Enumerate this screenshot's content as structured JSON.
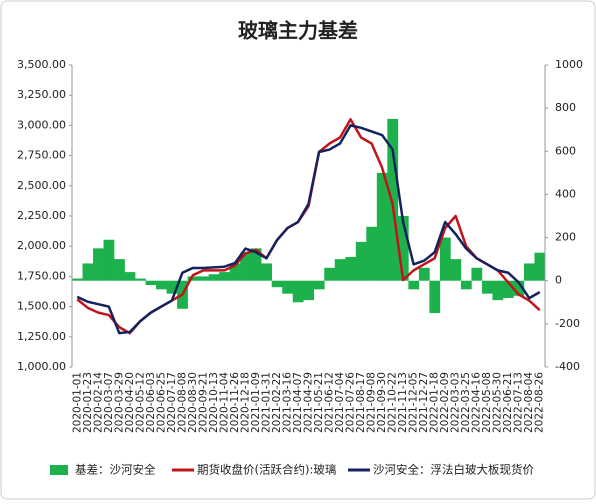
{
  "chart_data": {
    "type": "combo",
    "title": "玻璃主力基差",
    "x": [
      "2020-01-01",
      "2020-01-23",
      "2020-02-14",
      "2020-03-07",
      "2020-03-29",
      "2020-04-20",
      "2020-05-12",
      "2020-06-03",
      "2020-06-25",
      "2020-07-17",
      "2020-08-08",
      "2020-08-30",
      "2020-09-21",
      "2020-10-13",
      "2020-11-04",
      "2020-11-26",
      "2020-12-18",
      "2021-01-09",
      "2021-01-31",
      "2021-02-22",
      "2021-03-16",
      "2021-04-07",
      "2021-04-29",
      "2021-05-21",
      "2021-06-12",
      "2021-07-04",
      "2021-07-26",
      "2021-08-17",
      "2021-09-08",
      "2021-09-30",
      "2021-10-22",
      "2021-11-13",
      "2021-12-05",
      "2021-12-27",
      "2022-01-18",
      "2022-02-09",
      "2022-03-03",
      "2022-03-25",
      "2022-04-16",
      "2022-05-08",
      "2022-05-30",
      "2022-06-21",
      "2022-07-13",
      "2022-08-04",
      "2022-08-26"
    ],
    "series": [
      {
        "name": "基差：沙河安全",
        "type": "bar",
        "axis": "y2",
        "color": "#1db14b",
        "values": [
          10,
          80,
          150,
          190,
          100,
          40,
          10,
          -20,
          -40,
          -60,
          -130,
          20,
          20,
          30,
          40,
          80,
          130,
          150,
          80,
          -30,
          -60,
          -100,
          -90,
          -40,
          60,
          100,
          110,
          180,
          250,
          500,
          750,
          300,
          -40,
          60,
          -150,
          200,
          100,
          -40,
          60,
          -60,
          -90,
          -80,
          -70,
          80,
          130
        ]
      },
      {
        "name": "期货收盘价(活跃合约):玻璃",
        "type": "line",
        "color": "#c0141b",
        "values": [
          1560,
          1490,
          1450,
          1430,
          1330,
          1280,
          1380,
          1450,
          1500,
          1550,
          1600,
          1760,
          1800,
          1800,
          1800,
          1840,
          1940,
          1970,
          1900,
          2050,
          2150,
          2200,
          2330,
          2780,
          2850,
          2900,
          3050,
          2900,
          2850,
          2650,
          2350,
          1720,
          1800,
          1850,
          1900,
          2150,
          2250,
          2000,
          1900,
          1850,
          1800,
          1700,
          1600,
          1550,
          1470
        ]
      },
      {
        "name": "沙河安全：浮法白玻大板现货价",
        "type": "line",
        "color": "#14235e",
        "values": [
          1580,
          1540,
          1520,
          1500,
          1280,
          1290,
          1380,
          1450,
          1500,
          1550,
          1780,
          1820,
          1820,
          1825,
          1830,
          1860,
          1980,
          1950,
          1900,
          2050,
          2150,
          2200,
          2350,
          2780,
          2800,
          2850,
          3000,
          2980,
          2950,
          2920,
          2800,
          2200,
          1850,
          1880,
          1950,
          2200,
          2100,
          1980,
          1900,
          1850,
          1800,
          1780,
          1700,
          1570,
          1620
        ]
      }
    ],
    "ylim": [
      1000,
      3500
    ],
    "yticks": [
      {
        "value": 1000,
        "label": "1,000.00"
      },
      {
        "value": 1250,
        "label": "1,250.00"
      },
      {
        "value": 1500,
        "label": "1,500.00"
      },
      {
        "value": 1750,
        "label": "1,750.00"
      },
      {
        "value": 2000,
        "label": "2,000.00"
      },
      {
        "value": 2250,
        "label": "2,250.00"
      },
      {
        "value": 2500,
        "label": "2,500.00"
      },
      {
        "value": 2750,
        "label": "2,750.00"
      },
      {
        "value": 3000,
        "label": "3,000.00"
      },
      {
        "value": 3250,
        "label": "3,250.00"
      },
      {
        "value": 3500,
        "label": "3,500.00"
      }
    ],
    "y2lim": [
      -400,
      1000
    ],
    "y2ticks": [
      -400,
      -200,
      0,
      200,
      400,
      600,
      800,
      1000
    ],
    "legend": "bottom"
  }
}
